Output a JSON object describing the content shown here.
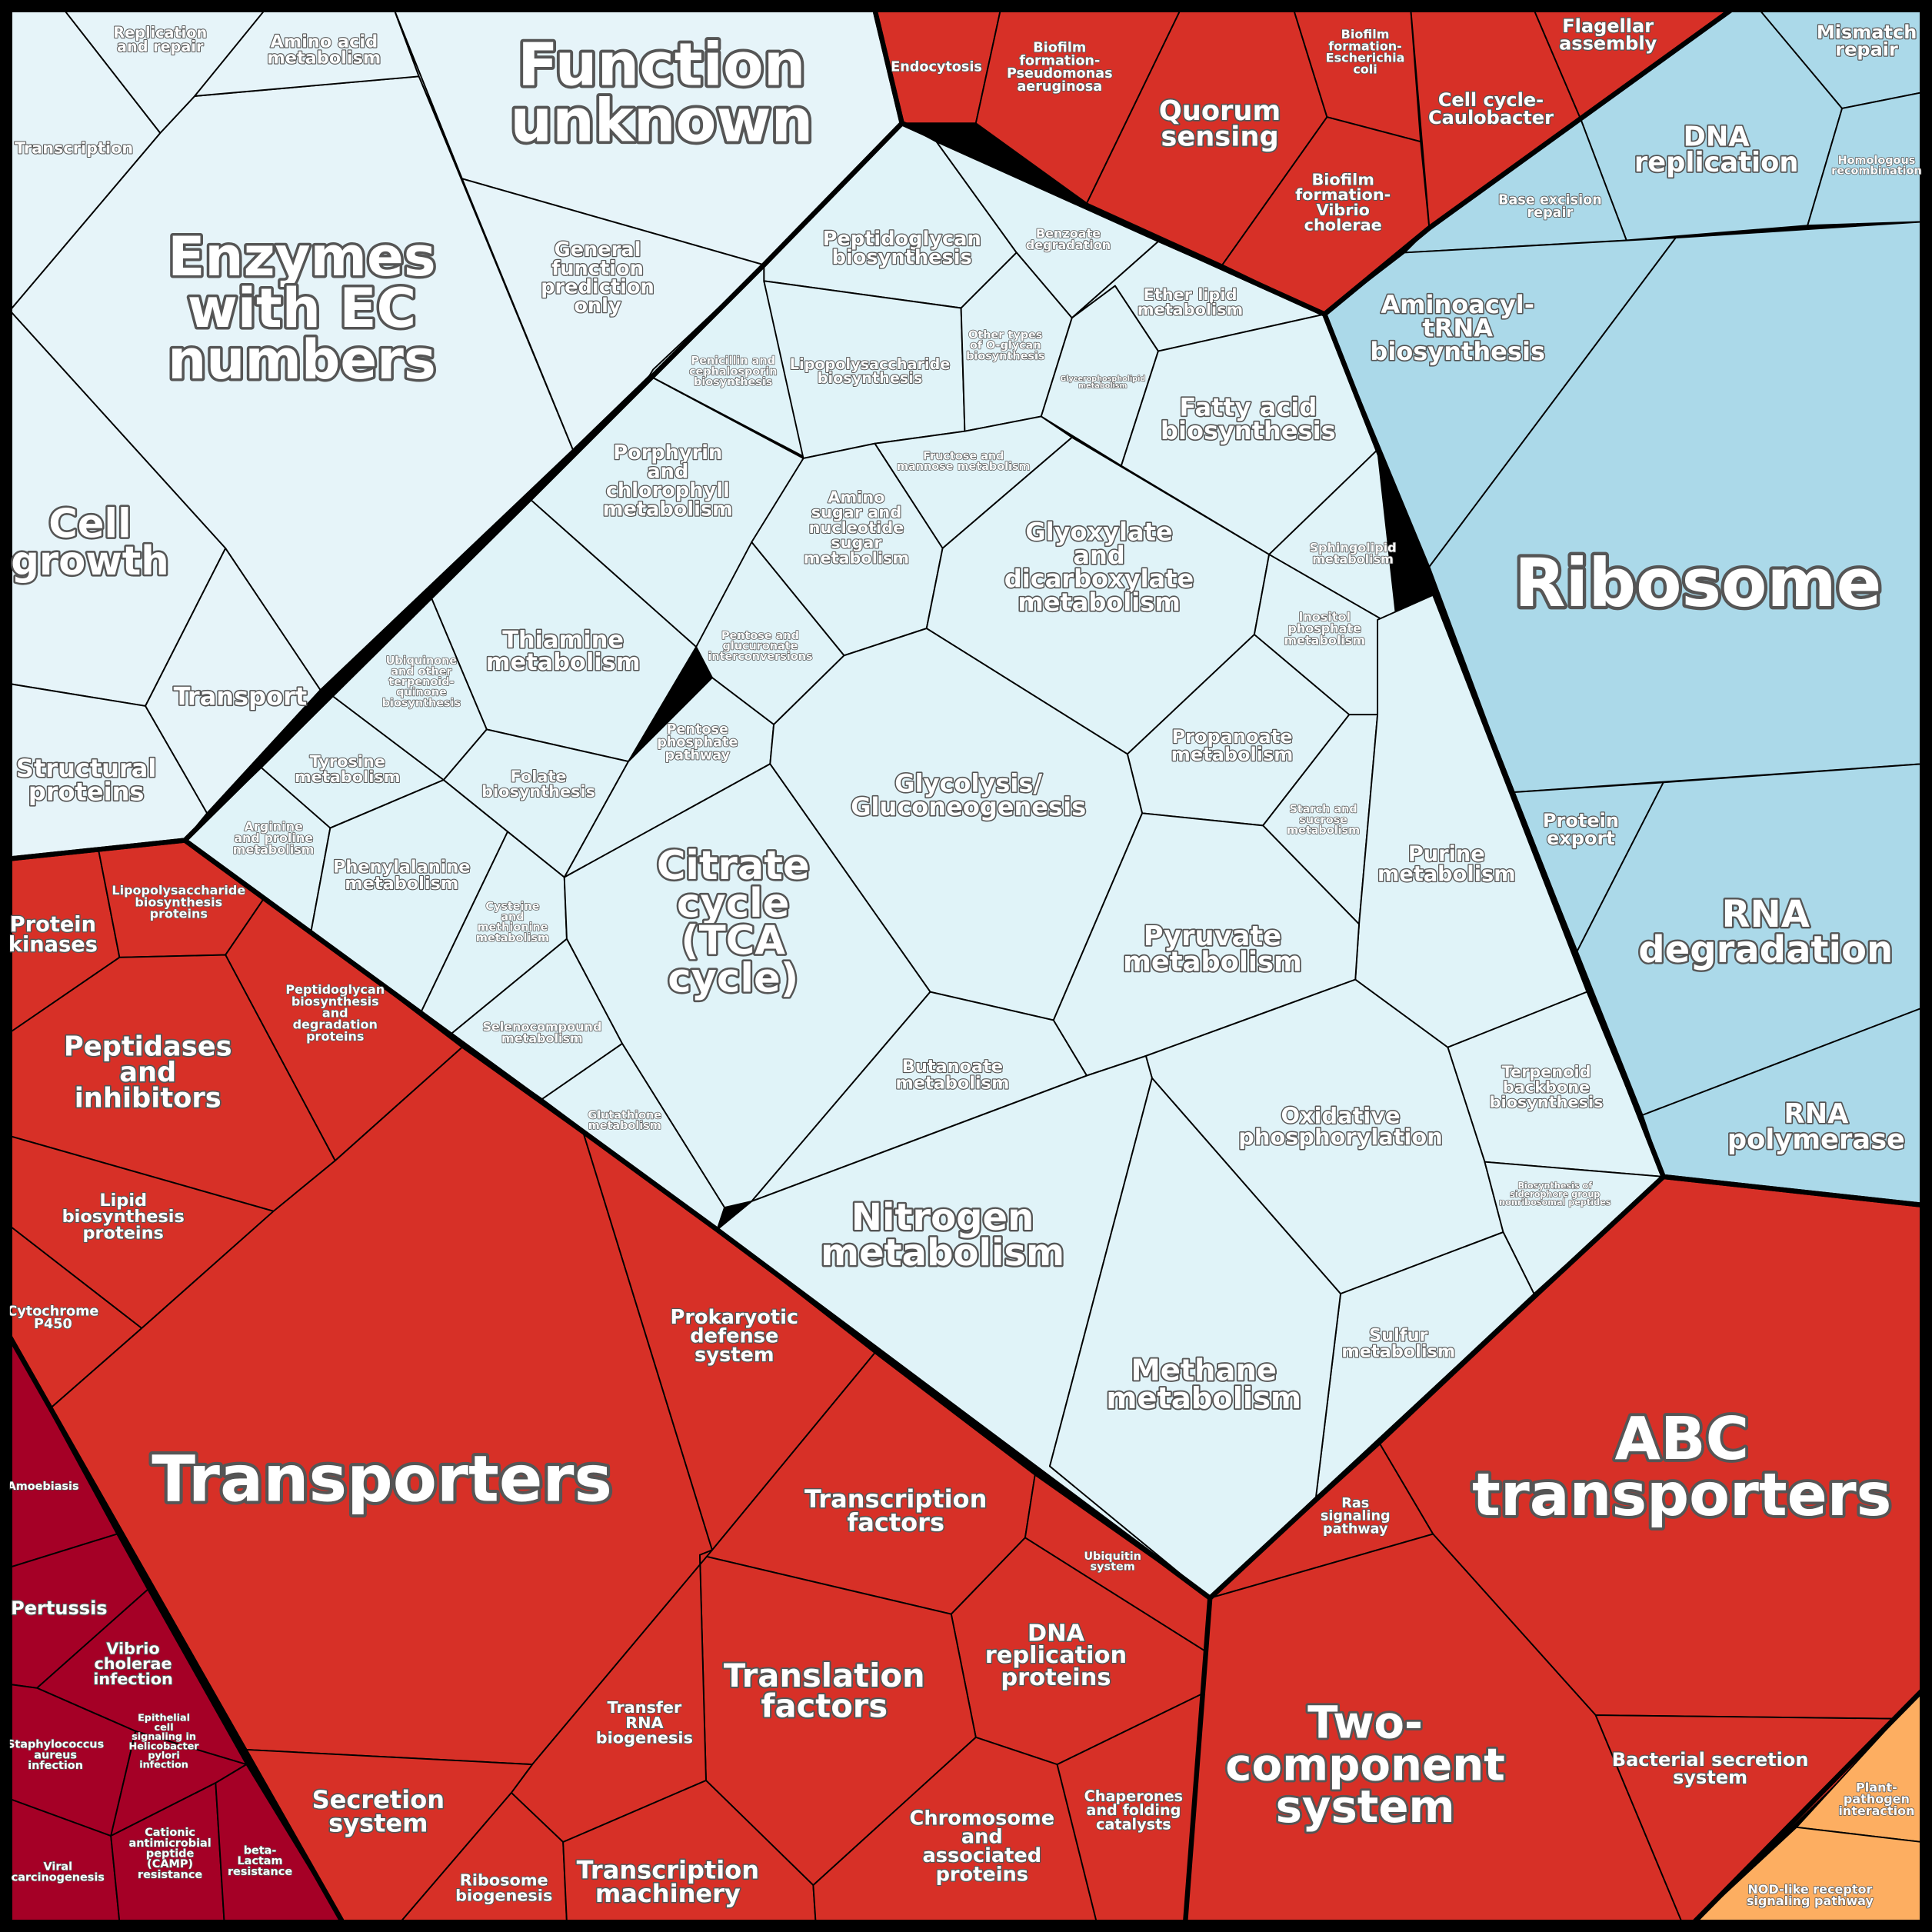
{
  "chart_data": {
    "type": "treemap",
    "subtype": "voronoi",
    "groups": [
      {
        "color": "#e6f4f9",
        "cells": [
          "Function\nunknown",
          "Enzymes\nwith EC\nnumbers",
          "Cell\ngrowth",
          "Transport",
          "Structural\nproteins",
          "Replication\nand repair",
          "Amino acid\nmetabolism",
          "Transcription",
          "General\nfunction\nprediction\nonly"
        ]
      },
      {
        "color": "#d73027",
        "cells": [
          "Endocytosis",
          "Biofilm\nformation-\nPseudomonas\naeruginosa",
          "Quorum\nsensing",
          "Biofilm\nformation-\nEscherichia\ncoli",
          "Biofilm\nformation-\nVibrio\ncholerae",
          "Cell cycle-\nCaulobacter",
          "Flagellar\nassembly"
        ]
      },
      {
        "color": "#abd9e9",
        "cells": [
          "Mismatch\nrepair",
          "DNA\nreplication",
          "Homologous\nrecombination",
          "Base excision\nrepair",
          "Aminoacyl-\ntRNA\nbiosynthesis",
          "Ribosome",
          "Protein\nexport",
          "RNA\ndegradation",
          "RNA\npolymerase"
        ]
      },
      {
        "color": "#e0f3f8",
        "cells": [
          "Peptidoglycan\nbiosynthesis",
          "Benzoate\ndegradation",
          "Ether lipid\nmetabolism",
          "Penicillin and\ncephalosporin\nbiosynthesis",
          "Lipopolysaccharide\nbiosynthesis",
          "Other types\nof O-glycan\nbiosynthesis",
          "Glycerophospholipid\nmetabolism",
          "Fatty acid\nbiosynthesis",
          "Fructose and\nmannose metabolism",
          "Porphyrin\nand\nchlorophyll\nmetabolism",
          "Amino\nsugar and\nnucleotide\nsugar\nmetabolism",
          "Glyoxylate\nand\ndicarboxylate\nmetabolism",
          "Sphingolipid\nmetabolism",
          "Inositol\nphosphate\nmetabolism",
          "Thiamine\nmetabolism",
          "Ubiquinone\nand other\nterpenoid-\nquinone\nbiosynthesis",
          "Pentose and\nglucuronate\ninterconversions",
          "Propanoate\nmetabolism",
          "Tyrosine\nmetabolism",
          "Folate\nbiosynthesis",
          "Pentose\nphosphate\npathway",
          "Glycolysis/\nGluconeogenesis",
          "Starch and\nsucrose\nmetabolism",
          "Arginine\nand proline\nmetabolism",
          "Phenylalanine\nmetabolism",
          "Purine\nmetabolism",
          "Cysteine\nand\nmethionine\nmetabolism",
          "Citrate\ncycle\n(TCA\ncycle)",
          "Pyruvate\nmetabolism",
          "Selenocompound\nmetabolism",
          "Butanoate\nmetabolism",
          "Glutathione\nmetabolism",
          "Terpenoid\nbackbone\nbiosynthesis",
          "Oxidative\nphosphorylation",
          "Biosynthesis of\nsiderophore group\nnonribosomal peptides",
          "Nitrogen\nmetabolism",
          "Sulfur\nmetabolism",
          "Methane\nmetabolism"
        ]
      },
      {
        "color": "#d73027",
        "cells": [
          "Protein\nkinases",
          "Lipopolysaccharide\nbiosynthesis\nproteins",
          "Peptidoglycan\nbiosynthesis\nand\ndegradation\nproteins",
          "Peptidases\nand\ninhibitors",
          "Lipid\nbiosynthesis\nproteins",
          "Cytochrome\nP450",
          "Transporters",
          "Prokaryotic\ndefense\nsystem",
          "Transcription\nfactors",
          "Ubiquitin\nsystem",
          "DNA\nreplication\nproteins",
          "Translation\nfactors",
          "Transfer\nRNA\nbiogenesis",
          "Secretion\nsystem",
          "Ribosome\nbiogenesis",
          "Transcription\nmachinery",
          "Chromosome\nand\nassociated\nproteins",
          "Chaperones\nand folding\ncatalysts",
          "ABC\ntransporters",
          "Ras\nsignaling\npathway",
          "Two-\ncomponent\nsystem",
          "Bacterial secretion\nsystem"
        ]
      },
      {
        "color": "#a50026",
        "cells": [
          "Amoebiasis",
          "Pertussis",
          "Vibrio\ncholerae\ninfection",
          "Staphylococcus\naureus\ninfection",
          "Epithelial\ncell\nsignaling in\nHelicobacter\npylori\ninfection",
          "Viral\ncarcinogenesis",
          "Cationic\nantimicrobial\npeptide\n(CAMP)\nresistance",
          "beta-\nLactam\nresistance"
        ]
      },
      {
        "color": "#fdae61",
        "cells": [
          "Plant-\npathogen\ninteraction",
          "NOD-like receptor\nsignaling pathway"
        ]
      }
    ]
  }
}
